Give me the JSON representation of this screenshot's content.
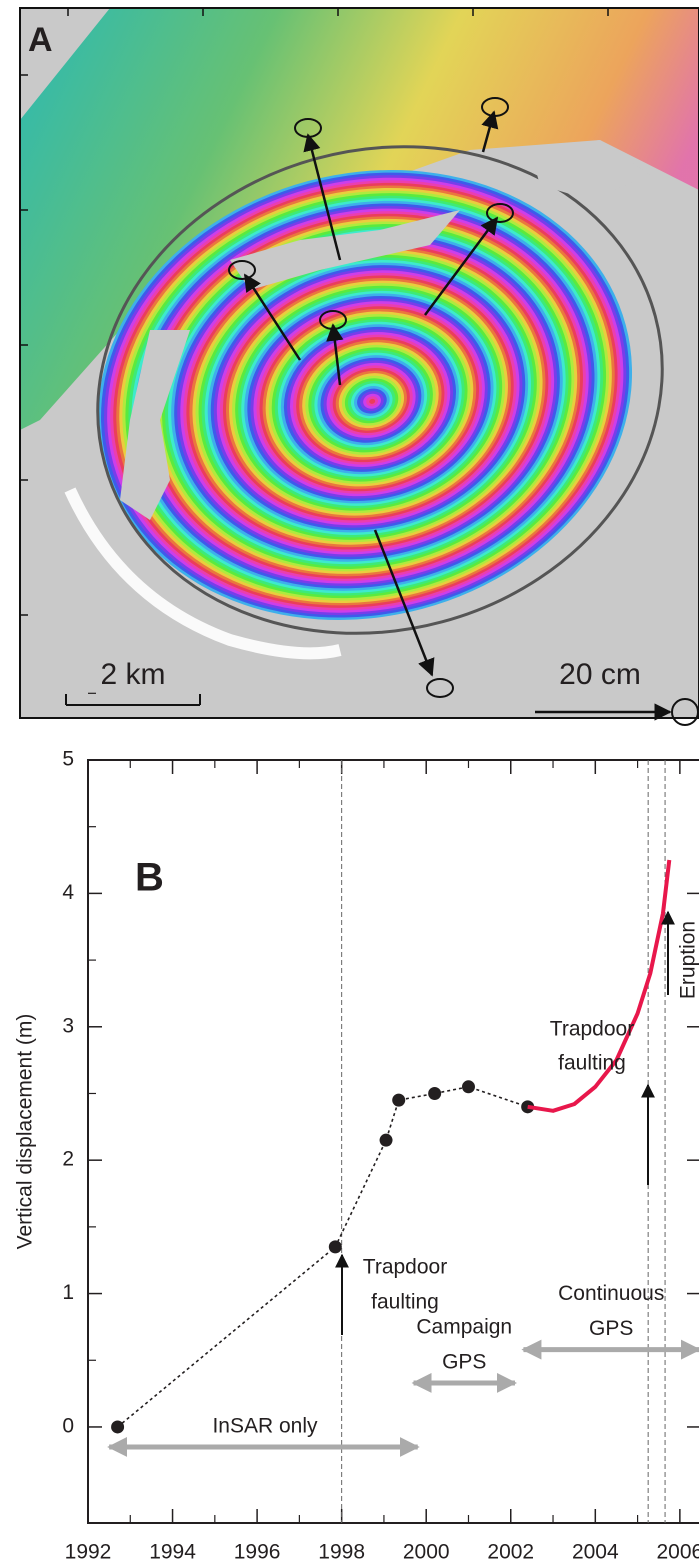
{
  "panel_a": {
    "label": "A",
    "scale_bar": "2 km",
    "vector_scale": "20 cm"
  },
  "chart_data": {
    "type": "line",
    "panel_label": "B",
    "y_label": "Vertical displacement (m)",
    "xlim": [
      1992,
      2006.5
    ],
    "ylim": [
      -0.72,
      5
    ],
    "xticks": [
      1992,
      1994,
      1996,
      1998,
      2000,
      2002,
      2004,
      2006
    ],
    "yticks": [
      0,
      1,
      2,
      3,
      4,
      5
    ],
    "series": [
      {
        "color": "#231f20",
        "style": "dotted-markers",
        "x": [
          1992.7,
          1997.85,
          1999.05,
          1999.35,
          2000.2,
          2001.0,
          2002.4
        ],
        "values": [
          0,
          1.35,
          2.15,
          2.45,
          2.5,
          2.55,
          2.4
        ]
      },
      {
        "color": "#e8174b",
        "style": "line",
        "x": [
          2002.4,
          2003,
          2003.5,
          2004,
          2004.5,
          2005,
          2005.3,
          2005.6,
          2005.75
        ],
        "values": [
          2.4,
          2.37,
          2.42,
          2.55,
          2.75,
          3.1,
          3.4,
          3.85,
          4.25
        ]
      }
    ],
    "events": [
      1998,
      2005.25,
      2005.65
    ],
    "spans": [
      {
        "label": [
          "InSAR only"
        ],
        "start": 1992.5,
        "end": 1999.8,
        "y": -0.15
      },
      {
        "label": [
          "Campaign",
          "GPS"
        ],
        "start": 1999.7,
        "end": 2002.1,
        "y": 0.33
      },
      {
        "label": [
          "Continuous",
          "GPS"
        ],
        "start": 2002.3,
        "end": 2006.5,
        "y": 0.58
      }
    ],
    "annotations": [
      {
        "text": [
          "Trapdoor",
          "faulting"
        ]
      },
      {
        "text": [
          "Trapdoor",
          "faulting"
        ]
      },
      {
        "text": [
          "Eruption"
        ]
      }
    ]
  }
}
